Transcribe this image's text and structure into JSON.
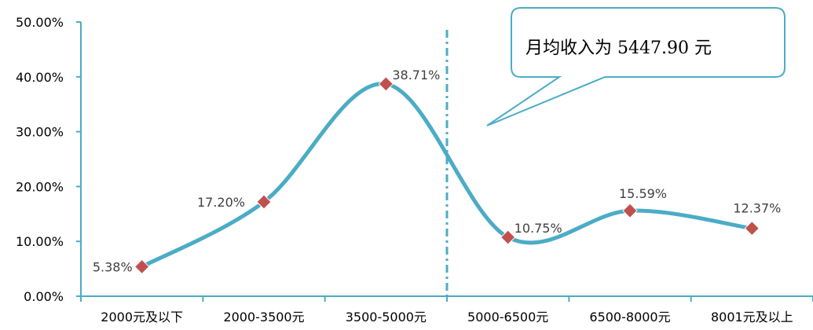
{
  "chart_data": {
    "type": "line",
    "smooth": true,
    "categories": [
      "2000元及以下",
      "2000-3500元",
      "3500-5000元",
      "5000-6500元",
      "6500-8000元",
      "8001元及以上"
    ],
    "values": [
      5.38,
      17.2,
      38.71,
      10.75,
      15.59,
      12.37
    ],
    "data_labels": [
      "5.38%",
      "17.20%",
      "38.71%",
      "10.75%",
      "15.59%",
      "12.37%"
    ],
    "ylim": [
      0,
      50
    ],
    "yticks": [
      0,
      10,
      20,
      30,
      40,
      50
    ],
    "ytick_labels": [
      "0.00%",
      "10.00%",
      "20.00%",
      "30.00%",
      "40.00%",
      "50.00%"
    ],
    "grid": false,
    "line_color": "#4BACC6",
    "marker_color": "#C0504D",
    "marker_shape": "diamond",
    "reference_line": {
      "x_category_boundary": 3,
      "style": "dash-dot",
      "color": "#4BACC6"
    },
    "annotation": {
      "text": "月均收入为 5447.90 元",
      "border_color": "#4BACC6"
    }
  }
}
